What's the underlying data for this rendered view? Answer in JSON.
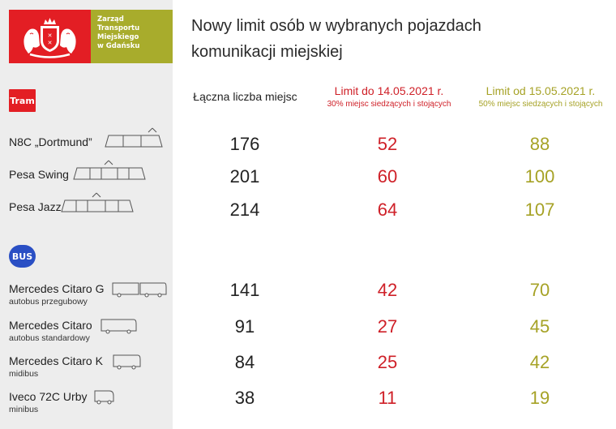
{
  "logo": {
    "lines": [
      "Zarząd",
      "Transportu",
      "Miejskiego",
      "w Gdańsku"
    ],
    "emblem": "gdansk-coat-of-arms-icon",
    "colors": {
      "red": "#e31e24",
      "green": "#a8ac2c"
    }
  },
  "title": {
    "line1": "Nowy limit osób w wybranych pojazdach",
    "line2": "komunikacji miejskiej"
  },
  "columns": {
    "total": {
      "label": "Łączna liczba miejsc"
    },
    "limit1": {
      "label": "Limit do 14.05.2021 r.",
      "sub": "30% miejsc siedzących i stojących",
      "color": "#cf2028"
    },
    "limit2": {
      "label": "Limit od 15.05.2021 r.",
      "sub": "50% miejsc siedzących i stojących",
      "color": "#a6a226"
    }
  },
  "tram": {
    "badge": "Tram",
    "rows": [
      {
        "name": "N8C „Dortmund”",
        "total": "176",
        "limit1": "52",
        "limit2": "88"
      },
      {
        "name": "Pesa Swing",
        "total": "201",
        "limit1": "60",
        "limit2": "100"
      },
      {
        "name": "Pesa Jazz",
        "total": "214",
        "limit1": "64",
        "limit2": "107"
      }
    ]
  },
  "bus": {
    "badge": "BUS",
    "rows": [
      {
        "name": "Mercedes Citaro G",
        "sub": "autobus przegubowy",
        "total": "141",
        "limit1": "42",
        "limit2": "70"
      },
      {
        "name": "Mercedes Citaro",
        "sub": "autobus standardowy",
        "total": "91",
        "limit1": "27",
        "limit2": "45"
      },
      {
        "name": "Mercedes Citaro K",
        "sub": "midibus",
        "total": "84",
        "limit1": "25",
        "limit2": "42"
      },
      {
        "name": "Iveco 72C Urby",
        "sub": "minibus",
        "total": "38",
        "limit1": "11",
        "limit2": "19"
      }
    ]
  }
}
